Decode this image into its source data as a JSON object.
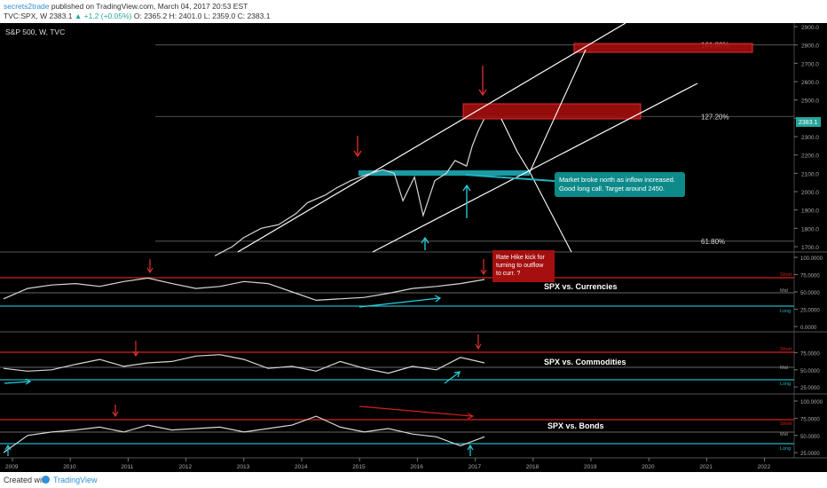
{
  "header": {
    "author": "secrets2trade",
    "published": " published on TradingView.com, March 04, 2017 20:53 EST",
    "symbol_line": "TVC:SPX, W  2383.1",
    "change": " ▲ +1.2 (+0.05%)",
    "ohlc": " O: 2365.2  H: 2401.0  L: 2359.0  C: 2383.1"
  },
  "footer": {
    "created": "Created with",
    "brand": "TradingView"
  },
  "colors": {
    "background": "#000000",
    "price": "#d8d8d8",
    "channel": "#ffffff",
    "zone_red": "#a50f0f",
    "zone_cyan": "#1fb5c2",
    "arrow_red": "#e03030",
    "arrow_cyan": "#2ad0e0",
    "last_price": "#26a69a"
  },
  "chart_data": [
    {
      "type": "line",
      "title": "S&P 500, W, TVC",
      "ylim": [
        1650,
        2950
      ],
      "y_ticks": [
        "2900.0",
        "2800.0",
        "2700.0",
        "2600.0",
        "2500.0",
        "2400.0",
        "2300.0",
        "2200.0",
        "2100.0",
        "2000.0",
        "1900.0",
        "1800.0",
        "1700.0"
      ],
      "x_ticks": [
        "2009",
        "2010",
        "2011",
        "2012",
        "2013",
        "2014",
        "2015",
        "2016",
        "2017",
        "2018",
        "2019",
        "2020",
        "2021",
        "2022"
      ],
      "last_price_label": "2383.1",
      "x": [
        2012.5,
        2012.8,
        2013.0,
        2013.3,
        2013.6,
        2013.9,
        2014.1,
        2014.4,
        2014.6,
        2014.85,
        2015.1,
        2015.4,
        2015.6,
        2015.75,
        2015.95,
        2016.1,
        2016.3,
        2016.5,
        2016.65,
        2016.85,
        2016.95,
        2017.05,
        2017.15
      ],
      "values": [
        1650,
        1700,
        1750,
        1800,
        1820,
        1880,
        1940,
        1980,
        2020,
        2060,
        2090,
        2120,
        2100,
        1950,
        2080,
        1870,
        2060,
        2100,
        2170,
        2140,
        2250,
        2330,
        2395
      ],
      "fib_levels": [
        {
          "label": "161.80%",
          "value": 2800
        },
        {
          "label": "127.20%",
          "value": 2410
        },
        {
          "label": "61.80%",
          "value": 1730
        }
      ],
      "annotations": [
        "Market broke north as inflow increased. Good long call. Target around 2450."
      ]
    },
    {
      "type": "line",
      "title": "SPX vs. Currencies",
      "ylim": [
        0,
        100
      ],
      "y_ticks": [
        "100.0000",
        "75.0000",
        "50.0000",
        "25.0000",
        "0.0000"
      ],
      "level_labels": [
        "Short",
        "Mid",
        "Long"
      ],
      "levels": [
        70,
        50,
        30
      ],
      "values": [
        40,
        55,
        60,
        62,
        58,
        65,
        70,
        62,
        55,
        58,
        65,
        62,
        50,
        38,
        40,
        42,
        48,
        55,
        58,
        62,
        68
      ],
      "annotations": [
        "Rate Hike kick for turning to outflow to curr. ?"
      ]
    },
    {
      "type": "line",
      "title": "SPX vs. Commodities",
      "ylim": [
        20,
        100
      ],
      "y_ticks": [
        "75.0000",
        "50.0000",
        "25.0000"
      ],
      "level_labels": [
        "Short",
        "Mid",
        "Long"
      ],
      "levels": [
        70,
        50,
        30
      ],
      "values": [
        52,
        48,
        50,
        58,
        65,
        55,
        60,
        62,
        70,
        72,
        65,
        52,
        55,
        48,
        62,
        52,
        45,
        55,
        50,
        68,
        60
      ]
    },
    {
      "type": "line",
      "title": "SPX vs. Bonds",
      "ylim": [
        20,
        100
      ],
      "y_ticks": [
        "100.0000",
        "75.0000",
        "50.0000",
        "25.0000"
      ],
      "level_labels": [
        "Short",
        "Mid",
        "Long"
      ],
      "levels": [
        70,
        50,
        30
      ],
      "values": [
        25,
        50,
        55,
        58,
        62,
        55,
        65,
        58,
        60,
        62,
        55,
        60,
        65,
        78,
        62,
        55,
        60,
        52,
        48,
        35,
        48
      ]
    }
  ]
}
